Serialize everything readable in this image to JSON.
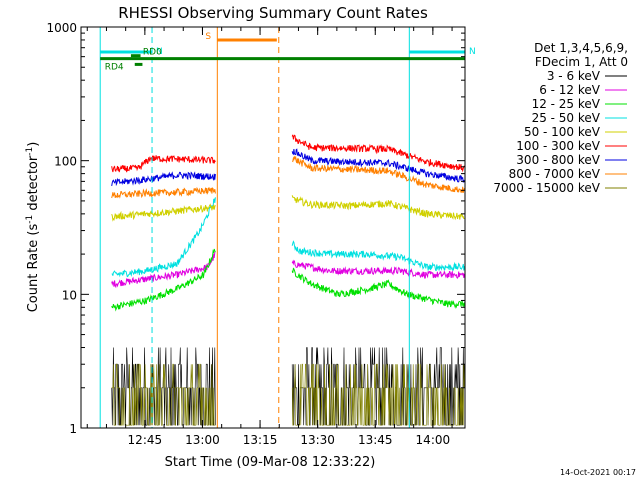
{
  "chart_data": {
    "type": "line",
    "title": "RHESSI Observing Summary Count Rates",
    "xlabel": "Start Time (09-Mar-08 12:33:22)",
    "ylabel_main": "Count Rate (s",
    "ylabel_sup1": "-1",
    "ylabel_mid": " detector",
    "ylabel_sup2": "-1",
    "ylabel_end": ")",
    "y_scale": "log",
    "ylim": [
      1,
      1000
    ],
    "xlim_minutes": [
      -5,
      95
    ],
    "x_ticks": [
      {
        "label": "12:45",
        "min": 11.63
      },
      {
        "label": "13:00",
        "min": 26.63
      },
      {
        "label": "13:15",
        "min": 41.63
      },
      {
        "label": "13:30",
        "min": 56.63
      },
      {
        "label": "13:45",
        "min": 71.63
      },
      {
        "label": "14:00",
        "min": 86.63
      }
    ],
    "y_ticks": [
      {
        "label": "1",
        "v": 1
      },
      {
        "label": "10",
        "v": 10
      },
      {
        "label": "100",
        "v": 100
      },
      {
        "label": "1000",
        "v": 1000
      }
    ],
    "legend_header": [
      "Det 1,3,4,5,6,9,",
      "FDecim 1, Att 0"
    ],
    "legend_position": "right",
    "series": [
      {
        "name": "3 - 6 keV",
        "color": "#000000",
        "segments": [
          {
            "x": [
              3,
              30
            ],
            "y": [
              3,
              3
            ]
          },
          {
            "x": [
              50,
              95
            ],
            "y": [
              3,
              3
            ]
          }
        ]
      },
      {
        "name": "6 - 12 keV",
        "color": "#e000e0",
        "segments": [
          {
            "x": [
              3,
              12,
              20,
              28,
              30
            ],
            "y": [
              12,
              13,
              14,
              16,
              20
            ]
          },
          {
            "x": [
              50,
              60,
              70,
              78,
              85,
              95
            ],
            "y": [
              17,
              15,
              15,
              15,
              14,
              14
            ]
          }
        ]
      },
      {
        "name": "12 - 25 keV",
        "color": "#00e000",
        "segments": [
          {
            "x": [
              3,
              12,
              20,
              27,
              30
            ],
            "y": [
              8,
              9,
              11,
              14,
              22
            ]
          },
          {
            "x": [
              50,
              55,
              62,
              70,
              75,
              80,
              90,
              95
            ],
            "y": [
              15,
              12,
              10,
              11,
              12,
              10,
              8.5,
              8.5
            ]
          }
        ]
      },
      {
        "name": "25 - 50 keV",
        "color": "#00e0e0",
        "segments": [
          {
            "x": [
              3,
              12,
              20,
              26,
              30
            ],
            "y": [
              14,
              15,
              17,
              30,
              52
            ]
          },
          {
            "x": [
              50,
              52,
              60,
              70,
              78,
              85,
              95
            ],
            "y": [
              24,
              21,
              20,
              20,
              19,
              16,
              16
            ]
          }
        ]
      },
      {
        "name": "50 - 100 keV",
        "color": "#d0d000",
        "segments": [
          {
            "x": [
              3,
              12,
              20,
              30
            ],
            "y": [
              38,
              40,
              42,
              45
            ]
          },
          {
            "x": [
              50,
              55,
              65,
              75,
              85,
              95
            ],
            "y": [
              52,
              47,
              46,
              48,
              40,
              38
            ]
          }
        ]
      },
      {
        "name": "100 - 300 keV",
        "color": "#ff0000",
        "segments": [
          {
            "x": [
              3,
              10,
              13,
              20,
              30
            ],
            "y": [
              86,
              88,
              104,
              103,
              100
            ]
          },
          {
            "x": [
              50,
              55,
              65,
              75,
              85,
              95
            ],
            "y": [
              150,
              125,
              124,
              122,
              98,
              88
            ]
          }
        ]
      },
      {
        "name": "300 - 800 keV",
        "color": "#0000e0",
        "segments": [
          {
            "x": [
              3,
              13,
              20,
              30
            ],
            "y": [
              68,
              73,
              78,
              76
            ]
          },
          {
            "x": [
              50,
              55,
              65,
              75,
              85,
              95
            ],
            "y": [
              120,
              100,
              98,
              96,
              80,
              72
            ]
          }
        ]
      },
      {
        "name": "800 - 7000 keV",
        "color": "#ff8000",
        "segments": [
          {
            "x": [
              3,
              12,
              20,
              30
            ],
            "y": [
              55,
              57,
              58,
              60
            ]
          },
          {
            "x": [
              50,
              55,
              65,
              75,
              85,
              95
            ],
            "y": [
              105,
              88,
              86,
              84,
              66,
              60
            ]
          }
        ]
      },
      {
        "name": "7000 - 15000 keV",
        "color": "#808000",
        "segments": [
          {
            "x": [
              3,
              30
            ],
            "y": [
              2.5,
              2.5
            ]
          },
          {
            "x": [
              50,
              95
            ],
            "y": [
              2.5,
              2.5
            ]
          }
        ]
      }
    ],
    "annotations": {
      "flags": [
        {
          "label": "N",
          "color": "#00e0e0",
          "x": [
            0,
            13.5
          ],
          "y": 650
        },
        {
          "label": "N",
          "color": "#00e0e0",
          "x": [
            80.5,
            95
          ],
          "y": 650
        },
        {
          "label": "S",
          "color": "#ff8000",
          "x": [
            30.5,
            46
          ],
          "y": 800
        },
        {
          "label": "RD0",
          "color": "#008000",
          "x": [
            8,
            10.5
          ],
          "y": 610
        },
        {
          "label": "RD4",
          "color": "#008000",
          "x": [
            9,
            11
          ],
          "y": 525
        },
        {
          "label": "",
          "color": "#008000",
          "x": [
            0,
            95
          ],
          "y": 580
        }
      ],
      "vlines": [
        {
          "x": 0,
          "color": "#00e0e0",
          "style": "solid"
        },
        {
          "x": 13.5,
          "color": "#00e0e0",
          "style": "dashed"
        },
        {
          "x": 30.5,
          "color": "#ff8000",
          "style": "solid"
        },
        {
          "x": 46.5,
          "color": "#ff8000",
          "style": "dashed"
        },
        {
          "x": 80.5,
          "color": "#00e0e0",
          "style": "solid"
        },
        {
          "x": 95,
          "color": "#00e0e0",
          "style": "dashed"
        }
      ]
    }
  },
  "footer": {
    "timestamp": "14-Oct-2021 00:17"
  }
}
